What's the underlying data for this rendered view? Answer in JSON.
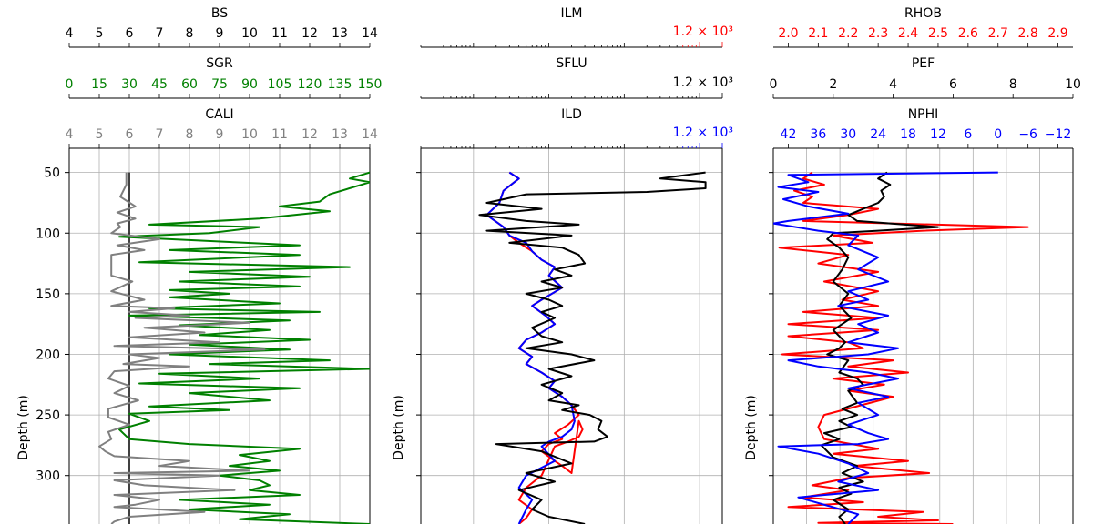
{
  "chart_data": [
    {
      "type": "line",
      "track": "left",
      "ylabel": "Depth (m)",
      "ylim": [
        340,
        30
      ],
      "yticks": [
        50,
        100,
        150,
        200,
        250,
        300
      ],
      "grid": true,
      "axes": [
        {
          "label": "BS",
          "color": "#000000",
          "range": [
            4,
            14
          ],
          "ticks": [
            "4",
            "5",
            "6",
            "7",
            "8",
            "9",
            "10",
            "11",
            "12",
            "13",
            "14"
          ]
        },
        {
          "label": "SGR",
          "color": "#008000",
          "range": [
            0,
            150
          ],
          "ticks": [
            "0",
            "15",
            "30",
            "45",
            "60",
            "75",
            "90",
            "105",
            "120",
            "135",
            "150"
          ]
        },
        {
          "label": "CALI",
          "color": "#808080",
          "range": [
            4,
            14
          ],
          "ticks": [
            "4",
            "5",
            "6",
            "7",
            "8",
            "9",
            "10",
            "11",
            "12",
            "13",
            "14"
          ]
        }
      ],
      "series": [
        {
          "name": "BS",
          "color": "#000000",
          "x": [
            6,
            6,
            6,
            6
          ],
          "depth": [
            50,
            150,
            250,
            340
          ]
        },
        {
          "name": "SGR",
          "color": "#008000",
          "x": [
            150,
            140,
            150,
            130,
            125,
            105,
            130,
            95,
            40,
            95,
            70,
            25,
            115,
            50,
            115,
            35,
            140,
            60,
            120,
            55,
            115,
            50,
            80,
            50,
            105,
            40,
            125,
            30,
            110,
            55,
            100,
            65,
            120,
            60,
            110,
            50,
            130,
            70,
            150,
            45,
            95,
            35,
            115,
            60,
            100,
            40,
            80,
            30,
            40,
            25,
            30,
            60,
            115,
            85,
            100,
            80,
            105,
            75,
            95,
            100,
            90,
            115,
            55,
            100,
            60,
            110,
            85,
            150
          ],
          "depth": [
            50,
            55,
            58,
            68,
            74,
            78,
            82,
            88,
            93,
            95,
            100,
            103,
            110,
            114,
            118,
            124,
            128,
            132,
            136,
            140,
            144,
            147,
            150,
            153,
            158,
            162,
            165,
            168,
            172,
            176,
            180,
            184,
            188,
            192,
            196,
            200,
            205,
            208,
            212,
            216,
            220,
            224,
            228,
            232,
            238,
            243,
            246,
            249,
            255,
            262,
            270,
            274,
            278,
            283,
            288,
            292,
            296,
            300,
            304,
            308,
            312,
            316,
            320,
            324,
            328,
            332,
            336,
            340
          ]
        },
        {
          "name": "CALI",
          "color": "#808080",
          "x": [
            5.9,
            5.9,
            5.7,
            6.2,
            5.6,
            6.2,
            5.6,
            5.7,
            5.4,
            7.0,
            5.6,
            6.5,
            5.4,
            5.4,
            6.1,
            5.4,
            6.5,
            5.4,
            7.5,
            6.0,
            8.0,
            6.2,
            10.0,
            6.5,
            8.5,
            6.0,
            9.0,
            5.5,
            10.5,
            6.0,
            7.0,
            5.8,
            8.0,
            5.5,
            5.3,
            6.0,
            5.5,
            6.3,
            5.3,
            5.3,
            6.0,
            5.3,
            5.4,
            5.0,
            5.2,
            5.5,
            8.0,
            7.0,
            10.0,
            5.5,
            9.0,
            5.5,
            6.5,
            9.5,
            5.5,
            7.0,
            6.2,
            5.5,
            8.5,
            6.0,
            5.5,
            5.4
          ],
          "depth": [
            50,
            60,
            70,
            78,
            83,
            88,
            92,
            95,
            100,
            105,
            110,
            114,
            118,
            135,
            140,
            148,
            155,
            160,
            162,
            165,
            168,
            170,
            174,
            178,
            182,
            186,
            190,
            193,
            196,
            200,
            203,
            208,
            210,
            214,
            220,
            226,
            232,
            238,
            245,
            252,
            258,
            264,
            270,
            276,
            280,
            284,
            288,
            292,
            296,
            298,
            300,
            304,
            308,
            312,
            316,
            320,
            324,
            326,
            330,
            334,
            338,
            340
          ]
        }
      ]
    },
    {
      "type": "line",
      "track": "middle",
      "ylabel": "Depth (m)",
      "ylim": [
        340,
        30
      ],
      "yticks": [
        50,
        100,
        150,
        200,
        250,
        300
      ],
      "xscale": "log",
      "xlim": [
        0.2,
        2000
      ],
      "grid": true,
      "axes": [
        {
          "label": "ILM",
          "color": "#ff0000",
          "range_label": "1.2 × 10³"
        },
        {
          "label": "SFLU",
          "color": "#000000",
          "range_label": "1.2 × 10³"
        },
        {
          "label": "ILD",
          "color": "#0000ff",
          "range_label": "1.2 × 10³"
        }
      ],
      "series": [
        {
          "name": "ILM",
          "color": "#ff0000",
          "x": [
            3,
            4,
            2.5,
            2.2,
            1.5,
            2.5,
            3,
            4,
            6,
            8,
            12,
            10,
            15,
            8,
            6,
            9,
            12,
            8,
            5,
            4,
            6,
            5,
            8,
            12,
            10,
            15,
            20,
            25,
            18,
            12,
            15,
            10,
            8,
            12,
            15,
            20,
            25,
            28,
            25,
            18,
            12,
            8,
            5,
            4,
            6,
            5,
            4
          ],
          "depth": [
            50,
            55,
            65,
            75,
            85,
            95,
            102,
            108,
            115,
            122,
            128,
            135,
            145,
            155,
            160,
            168,
            175,
            182,
            188,
            195,
            202,
            208,
            215,
            222,
            228,
            235,
            242,
            250,
            258,
            265,
            270,
            274,
            280,
            288,
            292,
            298,
            255,
            262,
            268,
            272,
            276,
            300,
            310,
            320,
            328,
            335,
            340
          ]
        },
        {
          "name": "ILD",
          "color": "#0000ff",
          "x": [
            3,
            4,
            2.5,
            2.2,
            1.5,
            2.5,
            3,
            5,
            6,
            8,
            12,
            10,
            15,
            8,
            6,
            9,
            12,
            8,
            5,
            4,
            6,
            5,
            8,
            12,
            10,
            15,
            20,
            22,
            20,
            15,
            10,
            8,
            12,
            5,
            4,
            6,
            5,
            4
          ],
          "depth": [
            50,
            55,
            65,
            75,
            85,
            95,
            102,
            108,
            115,
            122,
            128,
            135,
            145,
            155,
            160,
            168,
            175,
            182,
            188,
            195,
            202,
            208,
            215,
            222,
            228,
            235,
            242,
            255,
            262,
            268,
            272,
            276,
            288,
            300,
            310,
            320,
            328,
            340
          ]
        },
        {
          "name": "SFLU",
          "color": "#000000",
          "x": [
            1200,
            300,
            1200,
            1200,
            200,
            5,
            1.5,
            8,
            1.2,
            5,
            25,
            1.5,
            20,
            3,
            15,
            25,
            30,
            12,
            20,
            8,
            15,
            5,
            10,
            15,
            8,
            12,
            6,
            8,
            15,
            5,
            20,
            40,
            10,
            20,
            8,
            15,
            10,
            25,
            15,
            35,
            50,
            45,
            60,
            40,
            2,
            8,
            20,
            5,
            12,
            4,
            8,
            6,
            10,
            30
          ],
          "depth": [
            50,
            55,
            58,
            63,
            66,
            68,
            75,
            80,
            85,
            90,
            93,
            98,
            102,
            108,
            112,
            118,
            125,
            130,
            135,
            140,
            145,
            150,
            155,
            160,
            165,
            170,
            178,
            185,
            190,
            195,
            200,
            205,
            212,
            218,
            225,
            232,
            238,
            242,
            246,
            250,
            255,
            262,
            268,
            272,
            274,
            280,
            290,
            298,
            305,
            312,
            320,
            328,
            334,
            340
          ]
        }
      ]
    },
    {
      "type": "line",
      "track": "right",
      "ylabel": "Depth (m)",
      "ylim": [
        340,
        30
      ],
      "yticks": [
        50,
        100,
        150,
        200,
        250,
        300
      ],
      "grid": true,
      "axes": [
        {
          "label": "RHOB",
          "color": "#ff0000",
          "range": [
            1.95,
            2.95
          ],
          "ticks": [
            "2.0",
            "2.1",
            "2.2",
            "2.3",
            "2.4",
            "2.5",
            "2.6",
            "2.7",
            "2.8",
            "2.9"
          ]
        },
        {
          "label": "PEF",
          "color": "#000000",
          "range": [
            0,
            10
          ],
          "ticks": [
            "0",
            "2",
            "4",
            "6",
            "8",
            "10"
          ]
        },
        {
          "label": "NPHI",
          "color": "#0000ff",
          "range": [
            45,
            -15
          ],
          "ticks": [
            "42",
            "36",
            "30",
            "24",
            "18",
            "12",
            "6",
            "0",
            "−6",
            "−12"
          ]
        }
      ],
      "series": [
        {
          "name": "RHOB",
          "color": "#ff0000",
          "x": [
            2.08,
            2.05,
            2.12,
            2.02,
            2.08,
            2.05,
            2.3,
            2.2,
            2.05,
            2.8,
            2.45,
            2.15,
            2.28,
            1.97,
            2.2,
            2.1,
            2.3,
            2.12,
            2.3,
            2.18,
            2.3,
            2.05,
            2.3,
            2.0,
            2.3,
            2.0,
            2.2,
            2.25,
            1.98,
            2.35,
            2.2,
            2.4,
            2.15,
            2.32,
            2.2,
            2.35,
            2.12,
            2.1,
            2.12,
            2.3,
            2.15,
            2.4,
            2.22,
            2.47,
            2.2,
            2.08,
            2.2,
            2.05,
            2.25,
            2.0,
            2.45,
            2.3,
            2.5,
            2.1,
            2.55
          ],
          "depth": [
            50,
            55,
            60,
            65,
            70,
            75,
            80,
            85,
            90,
            95,
            98,
            102,
            108,
            112,
            118,
            125,
            132,
            140,
            148,
            155,
            160,
            165,
            170,
            175,
            180,
            185,
            190,
            195,
            200,
            205,
            210,
            215,
            220,
            225,
            230,
            235,
            250,
            260,
            270,
            278,
            282,
            288,
            292,
            298,
            302,
            308,
            312,
            318,
            322,
            326,
            330,
            334,
            337,
            339,
            340
          ]
        },
        {
          "name": "PEF",
          "color": "#000000",
          "x": [
            3.8,
            3.5,
            3.9,
            3.6,
            3.7,
            3.5,
            3.0,
            2.5,
            2.8,
            5.5,
            3.5,
            2.0,
            1.8,
            2.2,
            2.5,
            2.3,
            2.0,
            2.5,
            2.2,
            2.6,
            2.0,
            2.4,
            2.2,
            1.8,
            2.5,
            2.2,
            2.8,
            3.0,
            2.5,
            2.8,
            2.3,
            2.8,
            2.2,
            2.6,
            1.7,
            2.2,
            1.6,
            2.0,
            2.8,
            2.3,
            3.0,
            2.2,
            2.6,
            2.0,
            2.5,
            2.2,
            2.4
          ],
          "depth": [
            50,
            55,
            60,
            65,
            70,
            75,
            80,
            85,
            90,
            95,
            98,
            100,
            105,
            112,
            120,
            130,
            140,
            150,
            160,
            170,
            180,
            190,
            195,
            200,
            205,
            215,
            220,
            225,
            230,
            240,
            245,
            250,
            255,
            260,
            265,
            270,
            275,
            285,
            292,
            298,
            305,
            310,
            315,
            320,
            328,
            334,
            340
          ]
        },
        {
          "name": "NPHI",
          "color": "#0000ff",
          "x": [
            0,
            42,
            38,
            44,
            36,
            43,
            38,
            30,
            42,
            45,
            36,
            28,
            30,
            24,
            28,
            22,
            30,
            26,
            32,
            22,
            28,
            24,
            30,
            20,
            26,
            42,
            36,
            26,
            20,
            30,
            22,
            28,
            24,
            30,
            26,
            22,
            28,
            44,
            36,
            30,
            26,
            32,
            24,
            40,
            34,
            28,
            30
          ],
          "depth": [
            50,
            52,
            58,
            62,
            66,
            72,
            78,
            84,
            90,
            92,
            98,
            102,
            110,
            120,
            130,
            140,
            148,
            155,
            160,
            168,
            175,
            182,
            190,
            195,
            200,
            205,
            210,
            215,
            220,
            228,
            235,
            240,
            250,
            258,
            265,
            270,
            274,
            276,
            282,
            290,
            298,
            305,
            312,
            318,
            325,
            332,
            340
          ]
        }
      ]
    }
  ]
}
